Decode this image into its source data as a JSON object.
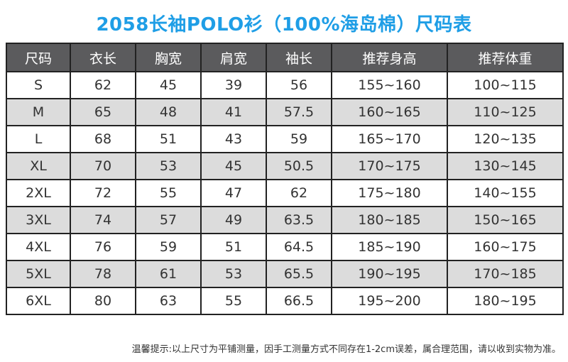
{
  "title": "2058长袖POLO衫（100%海岛棉）尺码表",
  "headers": [
    "尺码",
    "衣长",
    "胸宽",
    "肩宽",
    "袖长",
    "推荐身高",
    "推荐体重"
  ],
  "rows": [
    [
      "S",
      "62",
      "45",
      "39",
      "56",
      "155~160",
      "100~115"
    ],
    [
      "M",
      "65",
      "48",
      "41",
      "57.5",
      "160~165",
      "110~125"
    ],
    [
      "L",
      "68",
      "51",
      "43",
      "59",
      "165~170",
      "120~135"
    ],
    [
      "XL",
      "70",
      "53",
      "45",
      "50.5",
      "170~175",
      "130~145"
    ],
    [
      "2XL",
      "72",
      "55",
      "47",
      "62",
      "175~180",
      "140~155"
    ],
    [
      "3XL",
      "74",
      "57",
      "49",
      "63.5",
      "180~185",
      "150~165"
    ],
    [
      "4XL",
      "76",
      "59",
      "51",
      "64.5",
      "185~190",
      "160~175"
    ],
    [
      "5XL",
      "78",
      "61",
      "53",
      "65.5",
      "190~195",
      "170~185"
    ],
    [
      "6XL",
      "80",
      "63",
      "55",
      "66.5",
      "195~200",
      "180~195"
    ]
  ],
  "note": "温馨提示:以上尺寸为平铺测量，因手工测量方式不同存在1-2cm误差，属合理范围，请以收到实物为准。",
  "colors": {
    "title": "#1f9ee6",
    "header_bg": "#5b5b5d",
    "alt_row": "#dcdcdc"
  }
}
